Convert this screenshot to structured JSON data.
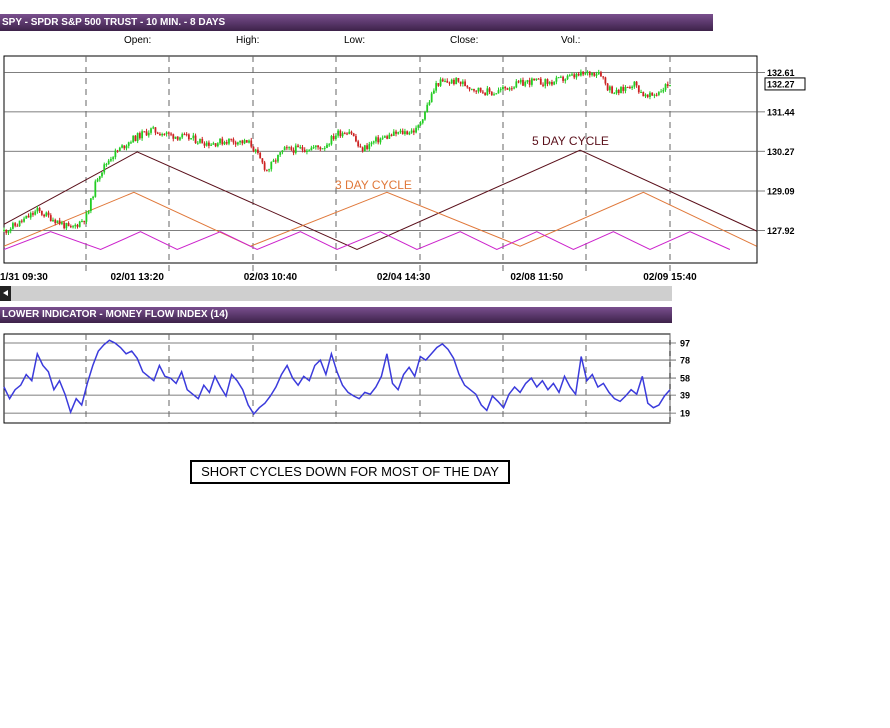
{
  "header": {
    "title": "SPY - SPDR S&P 500 TRUST - 10 MIN. - 8 DAYS"
  },
  "quote": {
    "open_label": "Open:",
    "high_label": "High:",
    "low_label": "Low:",
    "close_label": "Close:",
    "vol_label": "Vol.:"
  },
  "lower_indicator": {
    "title": "LOWER INDICATOR - MONEY FLOW INDEX (14)"
  },
  "note": {
    "text": "SHORT CYCLES DOWN FOR MOST OF THE DAY"
  },
  "colors": {
    "up": "#22cc22",
    "down": "#cc2222",
    "mfi": "#3b3bdc",
    "cycle5": "#5a0f1a",
    "cycle3": "#e0783a",
    "short_cycle": "#cc22cc"
  },
  "chart_data": [
    {
      "type": "candlestick",
      "title": "SPY - SPDR S&P 500 TRUST - 10 MIN. - 8 DAYS",
      "y_ticks": [
        132.61,
        131.44,
        130.27,
        129.09,
        127.92
      ],
      "y_labels": [
        "132.61",
        "131.44",
        "130.27",
        "129.09",
        "127.92"
      ],
      "last_price": 132.27,
      "last_price_label": "132.27",
      "ylim": [
        126.95,
        133.1
      ],
      "x_labels": [
        "1/31 09:30",
        "02/01 13:20",
        "02/03 10:40",
        "02/04 14:30",
        "02/08 11:50",
        "02/09 15:40"
      ],
      "x_label_fractions": [
        0.0,
        0.2,
        0.4,
        0.6,
        0.8,
        1.0
      ],
      "close_path": [
        [
          0.0,
          127.9
        ],
        [
          0.02,
          128.1
        ],
        [
          0.05,
          128.5
        ],
        [
          0.08,
          128.2
        ],
        [
          0.1,
          127.95
        ],
        [
          0.125,
          128.35
        ],
        [
          0.14,
          129.5
        ],
        [
          0.16,
          130.1
        ],
        [
          0.19,
          130.6
        ],
        [
          0.22,
          130.9
        ],
        [
          0.25,
          130.75
        ],
        [
          0.28,
          130.65
        ],
        [
          0.31,
          130.5
        ],
        [
          0.34,
          130.6
        ],
        [
          0.37,
          130.5
        ],
        [
          0.385,
          130.0
        ],
        [
          0.395,
          129.7
        ],
        [
          0.42,
          130.3
        ],
        [
          0.45,
          130.35
        ],
        [
          0.48,
          130.4
        ],
        [
          0.5,
          130.8
        ],
        [
          0.52,
          130.9
        ],
        [
          0.535,
          130.3
        ],
        [
          0.56,
          130.6
        ],
        [
          0.59,
          130.8
        ],
        [
          0.62,
          130.9
        ],
        [
          0.635,
          131.6
        ],
        [
          0.65,
          132.3
        ],
        [
          0.68,
          132.35
        ],
        [
          0.71,
          132.1
        ],
        [
          0.735,
          132.0
        ],
        [
          0.76,
          132.2
        ],
        [
          0.79,
          132.35
        ],
        [
          0.82,
          132.3
        ],
        [
          0.845,
          132.45
        ],
        [
          0.87,
          132.55
        ],
        [
          0.895,
          132.65
        ],
        [
          0.905,
          132.2
        ],
        [
          0.92,
          132.0
        ],
        [
          0.945,
          132.3
        ],
        [
          0.965,
          131.85
        ],
        [
          0.98,
          132.0
        ],
        [
          1.0,
          132.3
        ]
      ]
    },
    {
      "type": "line",
      "annotations": [
        "5 DAY CYCLE",
        "3 DAY CYCLE"
      ],
      "series": [
        {
          "name": "5 DAY CYCLE",
          "points": [
            [
              0.0,
              128.1
            ],
            [
              0.2,
              130.25
            ],
            [
              0.53,
              127.35
            ],
            [
              0.865,
              130.3
            ],
            [
              1.13,
              127.9
            ]
          ]
        },
        {
          "name": "3 DAY CYCLE",
          "points": [
            [
              0.0,
              127.45
            ],
            [
              0.195,
              129.05
            ],
            [
              0.37,
              127.45
            ],
            [
              0.575,
              129.05
            ],
            [
              0.775,
              127.45
            ],
            [
              0.96,
              129.05
            ],
            [
              1.13,
              127.45
            ]
          ]
        },
        {
          "name": "",
          "points": [
            [
              0.0,
              127.35
            ],
            [
              0.07,
              127.88
            ],
            [
              0.145,
              127.35
            ],
            [
              0.205,
              127.88
            ],
            [
              0.26,
              127.35
            ],
            [
              0.325,
              127.88
            ],
            [
              0.38,
              127.35
            ],
            [
              0.445,
              127.88
            ],
            [
              0.5,
              127.35
            ],
            [
              0.565,
              127.88
            ],
            [
              0.62,
              127.35
            ],
            [
              0.685,
              127.88
            ],
            [
              0.74,
              127.35
            ],
            [
              0.8,
              127.88
            ],
            [
              0.855,
              127.35
            ],
            [
              0.915,
              127.88
            ],
            [
              0.97,
              127.35
            ],
            [
              1.03,
              127.88
            ],
            [
              1.09,
              127.35
            ]
          ]
        }
      ]
    },
    {
      "type": "line",
      "title": "LOWER INDICATOR - MONEY FLOW INDEX (14)",
      "y_ticks": [
        97,
        78,
        58,
        39,
        19
      ],
      "y_labels": [
        "97",
        "78",
        "58",
        "39",
        "19"
      ],
      "ylim": [
        8,
        107
      ],
      "series": [
        {
          "name": "MONEY FLOW INDEX (14)",
          "values": [
            48,
            35,
            45,
            50,
            62,
            55,
            85,
            72,
            65,
            45,
            55,
            40,
            20,
            35,
            28,
            52,
            72,
            88,
            95,
            100,
            97,
            92,
            85,
            88,
            80,
            65,
            60,
            55,
            72,
            60,
            58,
            52,
            65,
            45,
            40,
            35,
            50,
            42,
            60,
            48,
            38,
            62,
            55,
            45,
            28,
            18,
            25,
            30,
            38,
            48,
            62,
            72,
            58,
            50,
            60,
            55,
            72,
            78,
            62,
            85,
            65,
            50,
            42,
            38,
            35,
            42,
            40,
            48,
            60,
            85,
            52,
            45,
            62,
            70,
            60,
            82,
            78,
            85,
            92,
            96,
            90,
            80,
            62,
            50,
            45,
            40,
            28,
            22,
            38,
            32,
            25,
            40,
            48,
            42,
            52,
            58,
            48,
            55,
            45,
            52,
            42,
            60,
            48,
            40,
            82,
            55,
            62,
            48,
            52,
            42,
            35,
            32,
            38,
            45,
            40,
            60,
            30,
            25,
            28,
            38,
            45
          ]
        }
      ]
    }
  ]
}
